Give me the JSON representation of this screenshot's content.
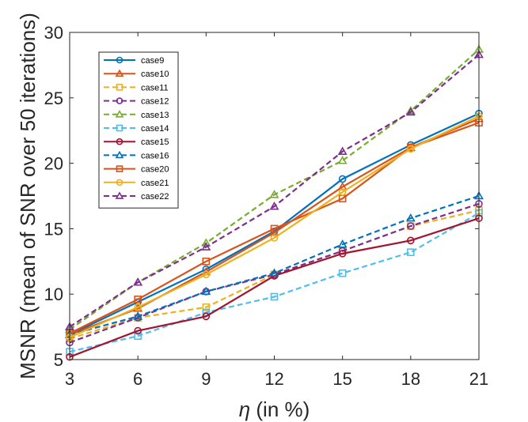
{
  "chart_data": {
    "type": "line",
    "title": "",
    "xlabel_prefix": "η",
    "xlabel": " (in %)",
    "ylabel": "MSNR (mean of SNR over 50 iterations)",
    "x": [
      3,
      6,
      9,
      12,
      15,
      18,
      21
    ],
    "xlim": [
      3,
      21
    ],
    "ylim": [
      5,
      30
    ],
    "xticks": [
      3,
      6,
      9,
      12,
      15,
      18,
      21
    ],
    "yticks": [
      5,
      10,
      15,
      20,
      25,
      30
    ],
    "grid": false,
    "legend_position": "top-left",
    "series": [
      {
        "name": "case9",
        "color": "#0072BD",
        "marker": "circle",
        "dashed": false,
        "values": [
          6.9,
          9.4,
          11.9,
          14.8,
          18.8,
          21.4,
          23.8
        ]
      },
      {
        "name": "case10",
        "color": "#D95319",
        "marker": "triangle",
        "dashed": false,
        "values": [
          6.9,
          8.9,
          11.7,
          14.7,
          18.2,
          21.2,
          23.4
        ]
      },
      {
        "name": "case11",
        "color": "#EDB120",
        "marker": "square",
        "dashed": true,
        "values": [
          6.6,
          8.2,
          9.0,
          11.5,
          13.3,
          15.2,
          16.4
        ]
      },
      {
        "name": "case12",
        "color": "#7E2F8E",
        "marker": "circle",
        "dashed": true,
        "values": [
          6.3,
          8.2,
          10.2,
          11.5,
          13.3,
          15.2,
          16.9
        ]
      },
      {
        "name": "case13",
        "color": "#77AC30",
        "marker": "triangle",
        "dashed": true,
        "values": [
          7.3,
          10.9,
          13.9,
          17.6,
          20.2,
          24.0,
          28.7
        ]
      },
      {
        "name": "case14",
        "color": "#4DBEEE",
        "marker": "square",
        "dashed": true,
        "values": [
          5.6,
          6.8,
          8.6,
          9.8,
          11.6,
          13.2,
          16.2
        ]
      },
      {
        "name": "case15",
        "color": "#A2142F",
        "marker": "circle",
        "dashed": false,
        "values": [
          5.2,
          7.2,
          8.3,
          11.4,
          13.1,
          14.1,
          15.8
        ]
      },
      {
        "name": "case16",
        "color": "#0072BD",
        "marker": "triangle",
        "dashed": true,
        "values": [
          6.9,
          8.3,
          10.2,
          11.6,
          13.8,
          15.8,
          17.5
        ]
      },
      {
        "name": "case20",
        "color": "#D95319",
        "marker": "square",
        "dashed": false,
        "values": [
          7.0,
          9.6,
          12.5,
          15.0,
          17.3,
          21.2,
          23.1
        ]
      },
      {
        "name": "case21",
        "color": "#EDB120",
        "marker": "circle",
        "dashed": false,
        "values": [
          6.7,
          9.0,
          11.5,
          14.3,
          17.8,
          21.1,
          23.6
        ]
      },
      {
        "name": "case22",
        "color": "#7E2F8E",
        "marker": "triangle",
        "dashed": true,
        "values": [
          7.5,
          10.9,
          13.6,
          16.7,
          20.9,
          23.9,
          28.3
        ]
      }
    ]
  }
}
